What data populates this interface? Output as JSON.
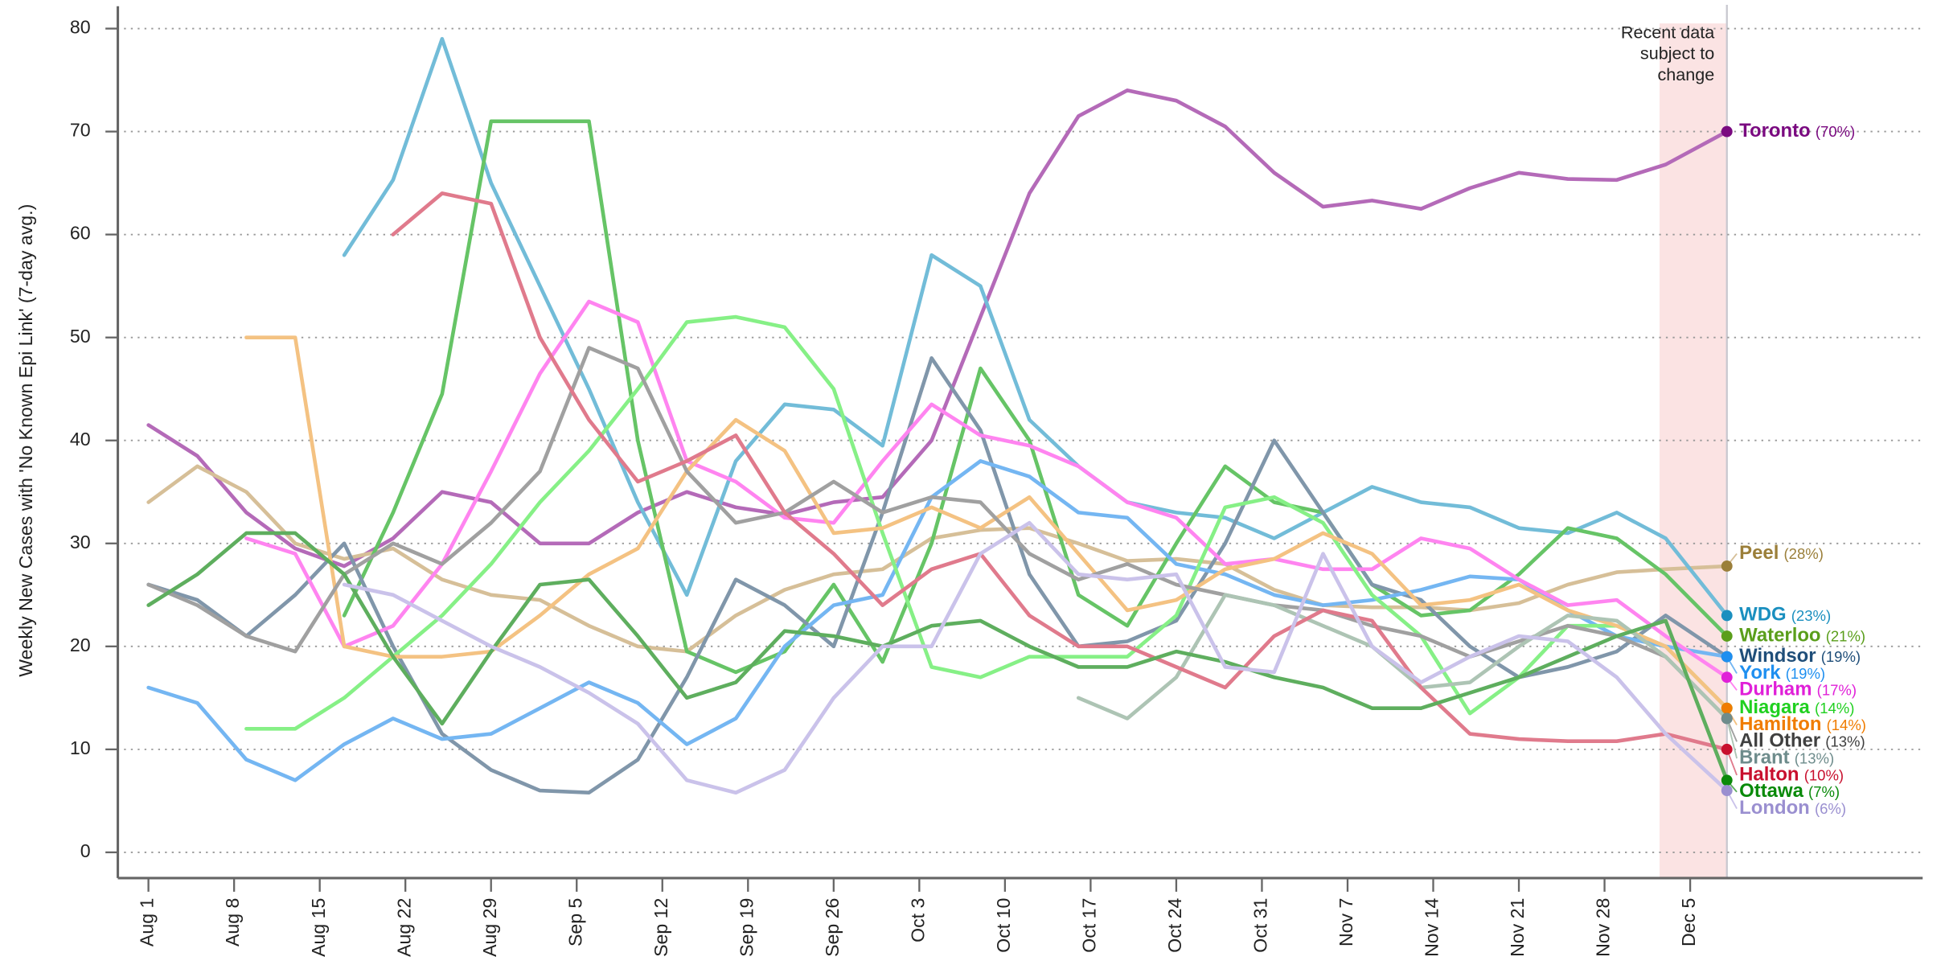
{
  "chart_data": {
    "type": "line",
    "y_label": "Weekly New Cases with 'No Known Epi Link' (7-day avg.)",
    "xlim": [
      -2.5,
      145
    ],
    "ylim": [
      -2.5,
      80.5
    ],
    "yticks": [
      0,
      10,
      20,
      30,
      40,
      50,
      60,
      70,
      80
    ],
    "xticks": [
      {
        "value": 0,
        "label": "Aug 1"
      },
      {
        "value": 7,
        "label": "Aug 8"
      },
      {
        "value": 14,
        "label": "Aug 15"
      },
      {
        "value": 21,
        "label": "Aug 22"
      },
      {
        "value": 28,
        "label": "Aug 29"
      },
      {
        "value": 35,
        "label": "Sep 5"
      },
      {
        "value": 42,
        "label": "Sep 12"
      },
      {
        "value": 49,
        "label": "Sep 19"
      },
      {
        "value": 56,
        "label": "Sep 26"
      },
      {
        "value": 63,
        "label": "Oct 3"
      },
      {
        "value": 70,
        "label": "Oct 10"
      },
      {
        "value": 77,
        "label": "Oct 17"
      },
      {
        "value": 84,
        "label": "Oct 24"
      },
      {
        "value": 91,
        "label": "Oct 31"
      },
      {
        "value": 98,
        "label": "Nov 7"
      },
      {
        "value": 105,
        "label": "Nov 14"
      },
      {
        "value": 112,
        "label": "Nov 21"
      },
      {
        "value": 119,
        "label": "Nov 28"
      },
      {
        "value": 126,
        "label": "Dec 5"
      }
    ],
    "grid": true,
    "highlight": {
      "x": [
        123.5,
        129
      ],
      "lines": [
        "Recent data",
        "subject to",
        "change"
      ]
    },
    "x": [
      0,
      4,
      8,
      12,
      16,
      20,
      24,
      28,
      32,
      36,
      40,
      44,
      48,
      52,
      56,
      60,
      64,
      68,
      72,
      76,
      80,
      84,
      88,
      92,
      96,
      100,
      104,
      108,
      112,
      116,
      120,
      124,
      129
    ],
    "series": [
      {
        "name": "Toronto",
        "note": "(70%)",
        "color": "#b46ab8",
        "label_color": "#7a0a80",
        "values": [
          41.5,
          38.5,
          33,
          29.5,
          27.8,
          30.5,
          35,
          34,
          30,
          30,
          33,
          35,
          33.5,
          32.8,
          34,
          34.5,
          40,
          52,
          64,
          71.5,
          74,
          73,
          70.5,
          66,
          62.7,
          63.3,
          62.5,
          64.5,
          66,
          65.4,
          65.3,
          66.8,
          70
        ]
      },
      {
        "name": "Peel",
        "note": "(28%)",
        "color": "#d6bf98",
        "label_color": "#9b7f3a",
        "values": [
          34,
          37.5,
          35,
          30,
          28.5,
          29.5,
          26.5,
          25,
          24.5,
          22,
          20,
          19.5,
          23,
          25.5,
          27,
          27.5,
          30.5,
          31.3,
          31.5,
          30,
          28.3,
          28.5,
          28,
          25.5,
          24,
          23.8,
          23.8,
          23.5,
          24.2,
          26,
          27.2,
          27.5,
          27.8
        ]
      },
      {
        "name": "WDG",
        "note": "(23%)",
        "color": "#72bcd8",
        "label_color": "#1a8fbf",
        "values": [
          null,
          null,
          null,
          null,
          58,
          65.3,
          79,
          65,
          55,
          45,
          34,
          25,
          38,
          43.5,
          43,
          39.5,
          58,
          55,
          42,
          37.5,
          34,
          33,
          32.5,
          30.5,
          33,
          35.5,
          34,
          33.5,
          31.5,
          31,
          33,
          30.5,
          23
        ]
      },
      {
        "name": "Waterloo",
        "note": "(21%)",
        "color": "#66c466",
        "label_color": "#5a9e1b",
        "values": [
          null,
          null,
          null,
          null,
          23,
          33,
          44.5,
          71,
          71,
          71,
          40,
          19.5,
          17.5,
          19.5,
          26,
          18.5,
          30,
          47,
          40,
          25,
          22,
          30,
          37.5,
          34,
          33,
          26,
          23,
          23.5,
          27,
          31.5,
          30.5,
          27,
          21
        ]
      },
      {
        "name": "Windsor",
        "note": "(19%)",
        "color": "#8096aa",
        "label_color": "#1f4e79",
        "values": [
          26,
          24.5,
          21,
          25,
          30,
          20,
          11.5,
          8,
          6,
          5.8,
          9,
          17,
          26.5,
          24,
          20,
          33,
          48,
          41,
          27,
          20,
          20.5,
          22.5,
          30,
          40,
          33,
          26,
          24.5,
          20,
          17,
          18,
          19.5,
          23,
          19
        ]
      },
      {
        "name": "York",
        "note": "(19%)",
        "color": "#74b6f2",
        "label_color": "#1e8ff0",
        "values": [
          16,
          14.5,
          9,
          7,
          10.5,
          13,
          11,
          11.5,
          14,
          16.5,
          14.5,
          10.5,
          13,
          20,
          24,
          25,
          34.5,
          38,
          36.5,
          33,
          32.5,
          28,
          27,
          25,
          24,
          24.5,
          25.5,
          26.8,
          26.5,
          23.5,
          21,
          20,
          19
        ]
      },
      {
        "name": "Durham",
        "note": "(17%)",
        "color": "#ff84f0",
        "label_color": "#e020d8",
        "values": [
          null,
          null,
          30.5,
          29,
          20,
          22,
          28,
          37,
          46.5,
          53.5,
          51.5,
          38,
          36,
          32.5,
          32,
          38,
          43.5,
          40.5,
          39.5,
          37.5,
          34,
          32.5,
          28,
          28.5,
          27.5,
          27.5,
          30.5,
          29.5,
          26.5,
          24,
          24.5,
          21,
          17
        ]
      },
      {
        "name": "Niagara",
        "note": "(14%)",
        "color": "#86f086",
        "label_color": "#20d020",
        "values": [
          null,
          null,
          12,
          12,
          15,
          19,
          23,
          28,
          34,
          39,
          45,
          51.5,
          52,
          51,
          45,
          31,
          18,
          17,
          19,
          19,
          19,
          23,
          33.5,
          34.5,
          32,
          25,
          21,
          13.5,
          17,
          22,
          22,
          20,
          14
        ]
      },
      {
        "name": "Hamilton",
        "note": "(14%)",
        "color": "#f4c282",
        "label_color": "#f07c00",
        "values": [
          null,
          null,
          50,
          50,
          20,
          19,
          19,
          19.5,
          23,
          27,
          29.5,
          37,
          42,
          39,
          31,
          31.5,
          33.5,
          31.5,
          34.5,
          29,
          23.5,
          24.5,
          27.5,
          28.5,
          31,
          29,
          24,
          24.5,
          26,
          23.5,
          22,
          20,
          14
        ]
      },
      {
        "name": "All Other",
        "note": "(13%)",
        "color": "#a0a0a0",
        "label_color": "#404040",
        "values": [
          26,
          24,
          21,
          19.5,
          27,
          30,
          28,
          32,
          37,
          49,
          47,
          37,
          32,
          33,
          36,
          33,
          34.5,
          34,
          29,
          26.5,
          28,
          26,
          25,
          24,
          23.5,
          22,
          21,
          19,
          20.5,
          22,
          21,
          19,
          13
        ]
      },
      {
        "name": "Brant",
        "note": "(13%)",
        "color": "#adc4b4",
        "label_color": "#6e8c8c",
        "values": [
          null,
          null,
          null,
          null,
          null,
          null,
          null,
          null,
          null,
          null,
          null,
          null,
          null,
          null,
          null,
          null,
          null,
          null,
          null,
          15,
          13,
          17,
          25,
          24,
          22,
          20,
          16,
          16.5,
          20,
          23,
          22.5,
          19,
          13
        ]
      },
      {
        "name": "Halton",
        "note": "(10%)",
        "color": "#e07a8c",
        "label_color": "#c8102e",
        "values": [
          null,
          null,
          null,
          null,
          null,
          60,
          64,
          63,
          50,
          42,
          36,
          38,
          40.5,
          33,
          29,
          24,
          27.5,
          29,
          23,
          20,
          20,
          18,
          16,
          21,
          23.5,
          22.5,
          16,
          11.5,
          11,
          10.8,
          10.8,
          11.5,
          10
        ]
      },
      {
        "name": "Ottawa",
        "note": "(7%)",
        "color": "#5eae5e",
        "label_color": "#0a8a0a",
        "values": [
          24,
          27,
          31,
          31,
          27,
          19,
          12.5,
          19.5,
          26,
          26.5,
          21,
          15,
          16.5,
          21.5,
          21,
          20,
          22,
          22.5,
          20,
          18,
          18,
          19.5,
          18.5,
          17,
          16,
          14,
          14,
          15.5,
          17,
          19,
          21,
          22.5,
          7
        ]
      },
      {
        "name": "London",
        "note": "(6%)",
        "color": "#cac2ea",
        "label_color": "#9a8fd0",
        "values": [
          null,
          null,
          null,
          null,
          26,
          25,
          22.5,
          20,
          18,
          15.5,
          12.5,
          7,
          5.8,
          8,
          15,
          20,
          20,
          29,
          32,
          27,
          26.5,
          27,
          18,
          17.5,
          29,
          20,
          16.5,
          19,
          21,
          20.5,
          17,
          11.5,
          6
        ]
      }
    ]
  }
}
